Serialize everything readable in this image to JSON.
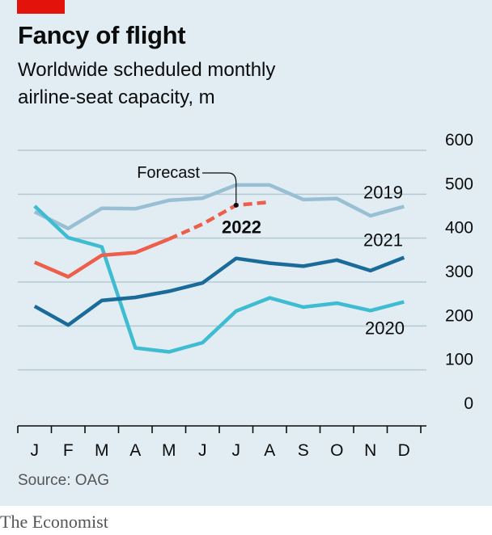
{
  "header": {
    "title": "Fancy of flight",
    "subtitle_line1": "Worldwide scheduled monthly",
    "subtitle_line2": "airline-seat capacity, m"
  },
  "footer": {
    "source": "Source: OAG",
    "brand": "The Economist"
  },
  "colors": {
    "background": "#e1edf3",
    "accent_red": "#e3120b",
    "series_2019": "#98bfd3",
    "series_2020": "#3ebcd2",
    "series_2021": "#1a6b9a",
    "series_2022": "#ed5e4b",
    "gridline": "#b5c9d3",
    "axis": "#0c0c0c"
  },
  "chart_data": {
    "type": "line",
    "title": "Fancy of flight",
    "subtitle": "Worldwide scheduled monthly airline-seat capacity, m",
    "categories": [
      "J",
      "F",
      "M",
      "A",
      "M",
      "J",
      "J",
      "A",
      "S",
      "O",
      "N",
      "D"
    ],
    "ylim": [
      0,
      600
    ],
    "yticks": [
      "0",
      "100",
      "200",
      "300",
      "400",
      "500",
      "600"
    ],
    "grid": true,
    "series": [
      {
        "name": "2019",
        "values": [
          460,
          422,
          468,
          467,
          486,
          491,
          521,
          521,
          488,
          490,
          451,
          472
        ]
      },
      {
        "name": "2020",
        "values": [
          473,
          401,
          380,
          150,
          141,
          162,
          234,
          264,
          243,
          252,
          235,
          255
        ]
      },
      {
        "name": "2021",
        "values": [
          245,
          202,
          258,
          265,
          279,
          298,
          354,
          343,
          336,
          350,
          326,
          356
        ]
      },
      {
        "name": "2022",
        "values": [
          345,
          312,
          361,
          367,
          398,
          432,
          475,
          482,
          null,
          null,
          null,
          null
        ],
        "forecast_from_index": 4
      }
    ],
    "annotations": [
      {
        "text": "Forecast",
        "points_to_series": "2022",
        "at_index": 6
      }
    ]
  }
}
